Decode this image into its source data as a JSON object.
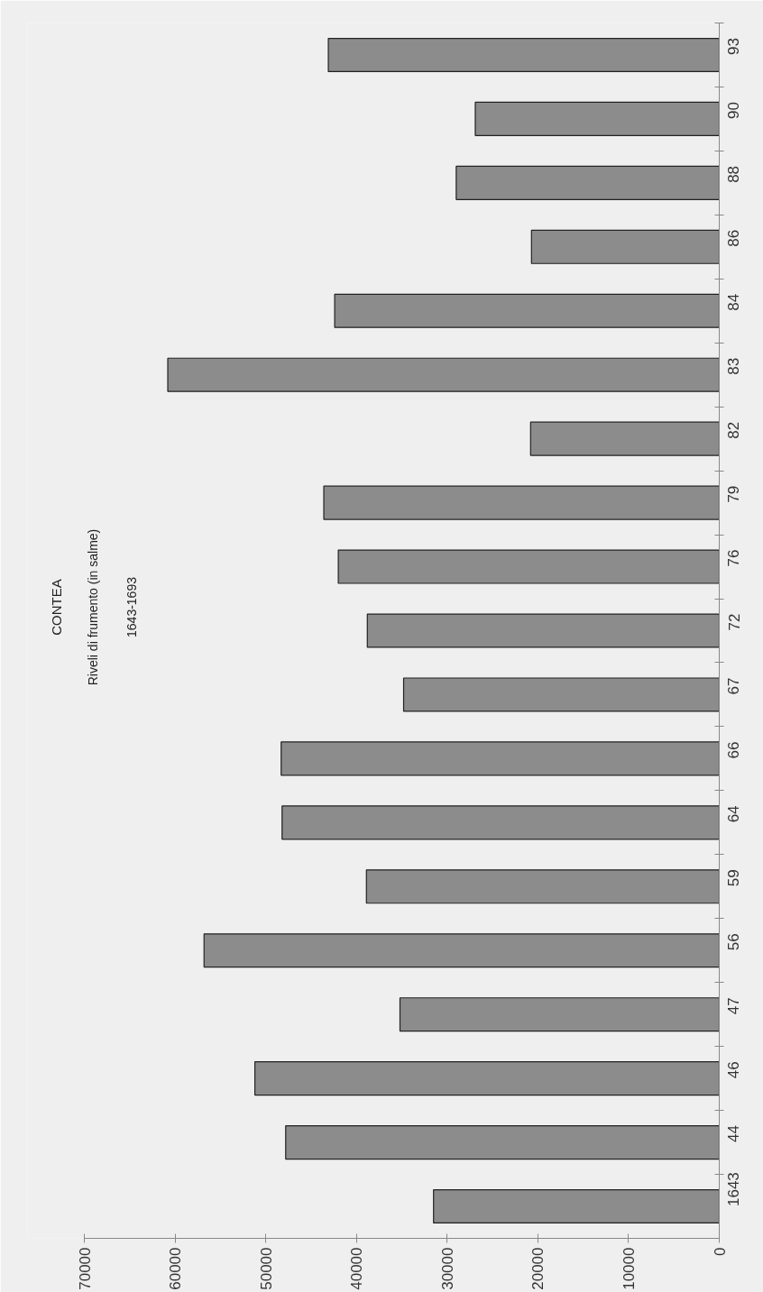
{
  "chart_data": {
    "type": "bar",
    "orientation": "horizontal",
    "title": "CONTEA",
    "subtitle": "Riveli di frumento (in salme)",
    "annotations": [
      "1643-1693"
    ],
    "categories": [
      "93",
      "90",
      "88",
      "86",
      "84",
      "83",
      "82",
      "79",
      "76",
      "72",
      "67",
      "66",
      "64",
      "59",
      "56",
      "47",
      "46",
      "44",
      "1643"
    ],
    "values": [
      43100,
      26900,
      29000,
      20700,
      42400,
      60800,
      20800,
      43600,
      42000,
      38800,
      34800,
      48300,
      48200,
      38900,
      56800,
      35200,
      51200,
      47800,
      31500
    ],
    "color": "#8c8c8c",
    "xlim": [
      70000,
      0
    ],
    "xticks": [
      0,
      10000,
      20000,
      30000,
      40000,
      50000,
      60000,
      70000
    ],
    "grid": false
  }
}
